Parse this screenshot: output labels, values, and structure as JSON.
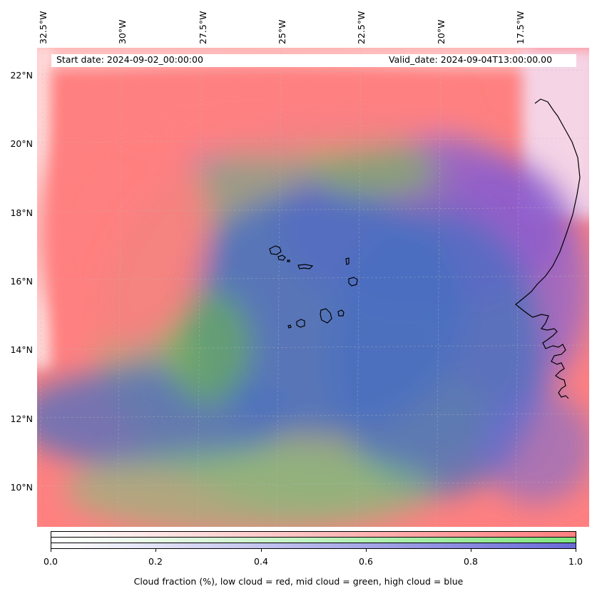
{
  "map": {
    "header": {
      "start_date": "Start date: 2024-09-02_00:00:00",
      "valid_date": "Valid_date: 2024-09-04T13:00:00.00"
    },
    "longitude_labels": [
      "32.5°W",
      "30°W",
      "27.5°W",
      "25°W",
      "22.5°W",
      "20°W",
      "17.5°W"
    ],
    "latitude_labels": [
      "22°N",
      "20°N",
      "18°N",
      "16°N",
      "14°N",
      "12°N",
      "10°N"
    ],
    "layer_colors": {
      "low_cloud": "#ff7f7f",
      "mid_cloud": "#7fe57f",
      "high_cloud": "#6a6ad8",
      "mixed_mid_high": "#4f7fbf",
      "land": "#ffffff"
    },
    "colorbar": {
      "ticks": [
        "0.0",
        "0.2",
        "0.4",
        "0.6",
        "0.8",
        "1.0"
      ],
      "label": "Cloud fraction (%), low cloud = red, mid cloud = green, high cloud = blue",
      "rows": [
        {
          "name": "low cloud",
          "color": "#ff7f7f"
        },
        {
          "name": "mid cloud",
          "color": "#7fe57f"
        },
        {
          "name": "high cloud",
          "color": "#6a6ad8"
        }
      ]
    }
  }
}
